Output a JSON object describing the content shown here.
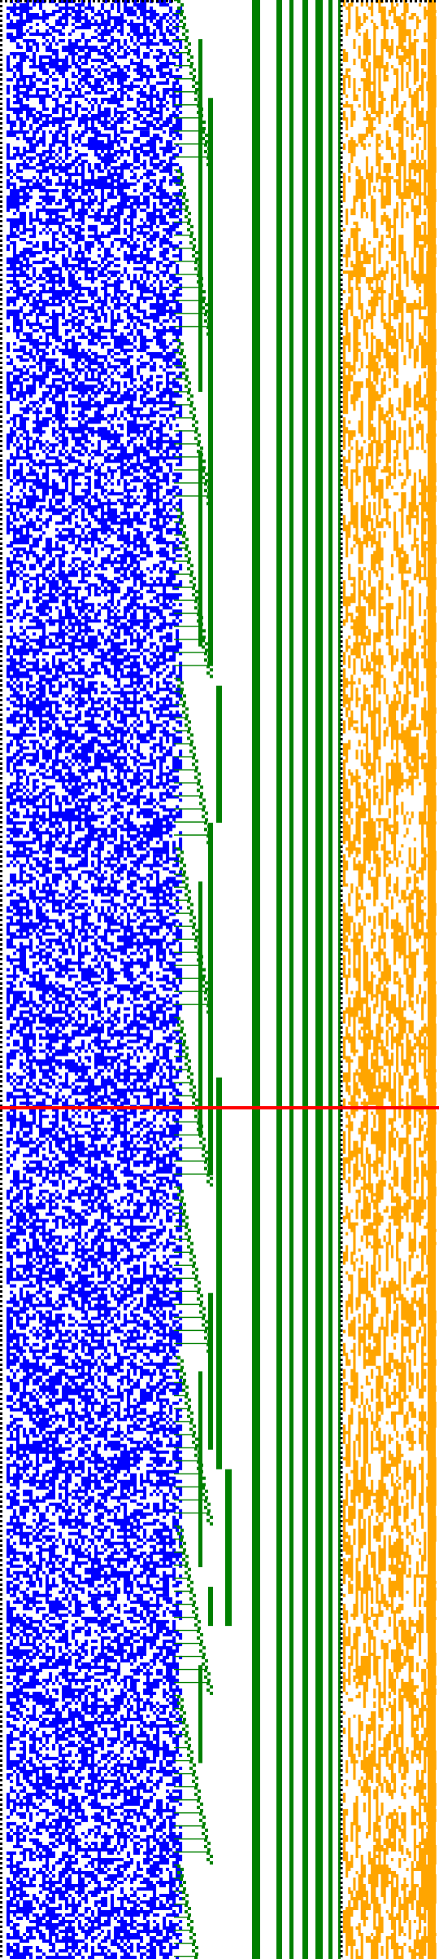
{
  "canvas": {
    "background": "#ffffff",
    "cell_grid_rows": 601
  },
  "colors": {
    "blue_region": "#0000ff",
    "green_region": "#008000",
    "orange_region": "#ffa500",
    "dotted_border": "#000000",
    "marker_line": "#ff0000"
  },
  "regions": {
    "blue_noise": {
      "columns": 54,
      "fill_fraction": 0.55
    },
    "green_staircase": {
      "step_period_rows": 4,
      "bars": 11
    },
    "orange_noise": {
      "columns": 37,
      "fill_fraction": 0.45
    }
  },
  "marker": {
    "row_fraction": 0.5655,
    "label": "red-divider"
  }
}
